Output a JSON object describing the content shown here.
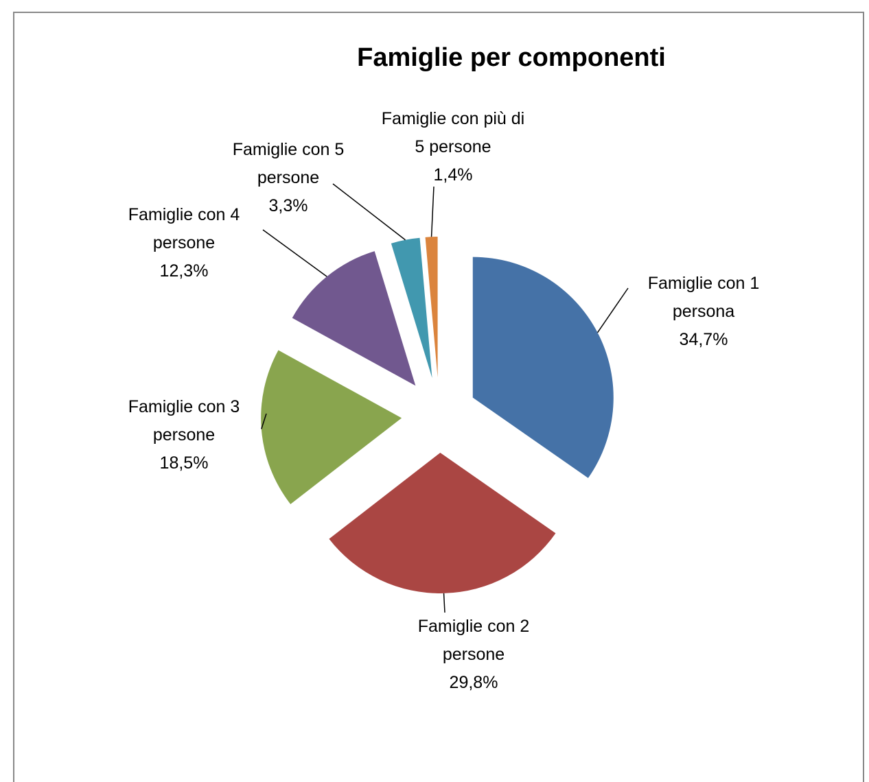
{
  "chart_data": {
    "type": "pie",
    "title": "Famiglie per componenti",
    "categories": [
      "Famiglie con 1 persona",
      "Famiglie con 2 persone",
      "Famiglie con 3 persone",
      "Famiglie con 4 persone",
      "Famiglie con 5 persone",
      "Famiglie con più di 5 persone"
    ],
    "values": [
      34.7,
      29.8,
      18.5,
      12.3,
      3.3,
      1.4
    ],
    "value_labels": [
      "34,7%",
      "29,8%",
      "18,5%",
      "12,3%",
      "3,3%",
      "1,4%"
    ],
    "colors": [
      "#4572a7",
      "#aa4643",
      "#89a54e",
      "#71588f",
      "#4198af",
      "#db843d"
    ]
  }
}
